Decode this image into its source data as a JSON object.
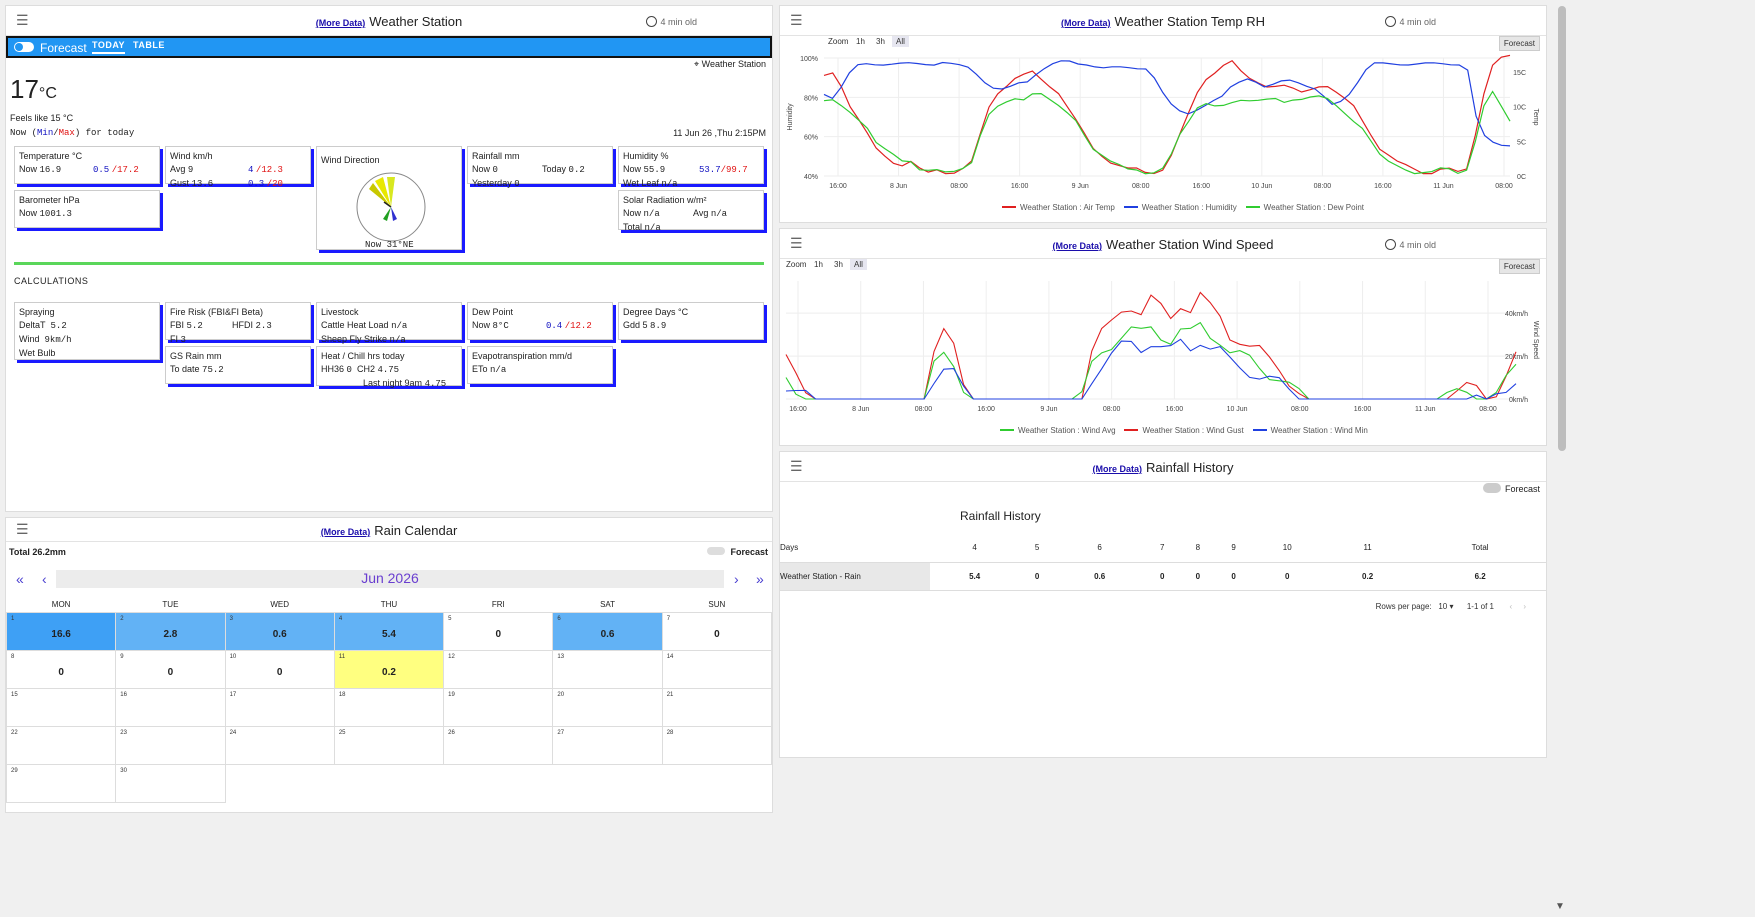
{
  "ws_panel": {
    "more": "(More Data)",
    "title": "Weather Station",
    "age": "4 min old",
    "forecast_label": "Forecast",
    "tab_today": "TODAY",
    "tab_table": "TABLE",
    "location": "Weather Station",
    "temp_value": "17",
    "temp_unit": "°C",
    "feels_like": "Feels like 15 °C",
    "now_prefix": "Now (",
    "min_label": "Min",
    "slash": "/",
    "max_label": "Max",
    "now_suffix": ") for today",
    "datetime": "11 Jun 26 ,Thu 2:15PM",
    "temperature": {
      "title": "Temperature °C",
      "now_label": "Now",
      "now": "16.9",
      "min": "0.5",
      "max": "/17.2"
    },
    "wind": {
      "title": "Wind km/h",
      "avg_label": "Avg",
      "avg": "9",
      "avg_min": "4",
      "avg_max": "/12.3",
      "gust_label": "Gust",
      "gust": "13.6",
      "gust_min": "0.3",
      "gust_max": "/20"
    },
    "wind_direction": {
      "title": "Wind Direction",
      "now": "Now  31°NE"
    },
    "rainfall": {
      "title": "Rainfall mm",
      "now_label": "Now",
      "now": "0",
      "today_label": "Today",
      "today": "0.2",
      "yesterday_label": "Yesterday",
      "yesterday": "0"
    },
    "humidity": {
      "title": "Humidity %",
      "now_label": "Now",
      "now": "55.9",
      "min": "53.7",
      "max": "/99.7",
      "wet_leaf_label": "Wet Leaf",
      "wet_leaf": "n/a"
    },
    "barometer": {
      "title": "Barometer hPa",
      "now_label": "Now",
      "now": "1001.3"
    },
    "solar": {
      "title": "Solar Radiation w/m²",
      "now_label": "Now",
      "now": "n/a",
      "avg_label": "Avg",
      "avg": "n/a",
      "total_label": "Total",
      "total": "n/a"
    },
    "calc_heading": "CALCULATIONS",
    "spraying": {
      "title": "Spraying",
      "delta_label": "DeltaT",
      "delta": "5.2",
      "wind_label": "Wind",
      "wind": "9km/h",
      "wet_bulb_label": "Wet Bulb"
    },
    "fire": {
      "title": "Fire Risk (FBI&FI Beta)",
      "fbi_label": "FBI",
      "fbi": "5.2",
      "hfdi_label": "HFDI",
      "hfdi": "2.3",
      "fi_label": "FI",
      "fi": "3"
    },
    "livestock": {
      "title": "Livestock",
      "cattle_label": "Cattle Heat Load",
      "cattle": "n/a",
      "sheep_label": "Sheep Fly Strike",
      "sheep": "n/a"
    },
    "dew": {
      "title": "Dew Point",
      "now_label": "Now",
      "now": "8°C",
      "min": "0.4",
      "max": "/12.2"
    },
    "degree": {
      "title": "Degree Days °C",
      "gdd_label": "Gdd 5",
      "gdd": "8.9"
    },
    "gsrain": {
      "title": "GS Rain mm",
      "todate_label": "To date",
      "todate": "75.2"
    },
    "heatchill": {
      "title": "Heat / Chill hrs today",
      "hh_label": "HH36",
      "hh": "0",
      "ch_label": "CH2",
      "ch": "4.75",
      "last_label": "Last night 9am",
      "last": "4.75"
    },
    "evapo": {
      "title": "Evapotranspiration mm/d",
      "eto_label": "ETo",
      "eto": "n/a"
    }
  },
  "temp_panel": {
    "more": "(More Data)",
    "title": "Weather Station Temp RH",
    "age": "4 min old",
    "zoom": "Zoom",
    "z1": "1h",
    "z3": "3h",
    "zall": "All",
    "forecast": "Forecast",
    "y_left_label": "Humidity",
    "y_right_label": "Temp",
    "legend": [
      "Weather Station : Air Temp",
      "Weather Station : Humidity",
      "Weather Station : Dew Point"
    ],
    "colors": {
      "temp": "#e02020",
      "hum": "#2040e0",
      "dew": "#30cc30"
    }
  },
  "wind_panel": {
    "more": "(More Data)",
    "title": "Weather Station Wind Speed",
    "age": "4 min old",
    "zoom": "Zoom",
    "z1": "1h",
    "z3": "3h",
    "zall": "All",
    "forecast": "Forecast",
    "y_label": "Wind Speed",
    "legend": [
      "Weather Station : Wind Avg",
      "Weather Station : Wind Gust",
      "Weather Station : Wind Min"
    ]
  },
  "rain_hist": {
    "more": "(More Data)",
    "title": "Rainfall History",
    "forecast": "Forecast",
    "table_title": "Rainfall History",
    "headers": [
      "Days",
      "4",
      "5",
      "6",
      "7",
      "8",
      "9",
      "10",
      "11",
      "Total"
    ],
    "row": [
      "Weather Station - Rain",
      "5.4",
      "0",
      "0.6",
      "0",
      "0",
      "0",
      "0",
      "0.2",
      "6.2"
    ],
    "rows_per_page_label": "Rows per page:",
    "rows_per_page": "10",
    "range": "1-1 of 1"
  },
  "rain_cal": {
    "more": "(More Data)",
    "title": "Rain Calendar",
    "total": "Total 26.2mm",
    "forecast": "Forecast",
    "month": "Jun 2026",
    "days": [
      "MON",
      "TUE",
      "WED",
      "THU",
      "FRI",
      "SAT",
      "SUN"
    ],
    "weeks": [
      [
        {
          "d": "1",
          "v": "16.6"
        },
        {
          "d": "2",
          "v": "2.8"
        },
        {
          "d": "3",
          "v": "0.6"
        },
        {
          "d": "4",
          "v": "5.4"
        },
        {
          "d": "5",
          "v": "0"
        },
        {
          "d": "6",
          "v": "0.6"
        },
        {
          "d": "7",
          "v": "0"
        }
      ],
      [
        {
          "d": "8",
          "v": "0"
        },
        {
          "d": "9",
          "v": "0"
        },
        {
          "d": "10",
          "v": "0"
        },
        {
          "d": "11",
          "v": "0.2"
        },
        {
          "d": "12",
          "v": ""
        },
        {
          "d": "13",
          "v": ""
        },
        {
          "d": "14",
          "v": ""
        }
      ],
      [
        {
          "d": "15",
          "v": ""
        },
        {
          "d": "16",
          "v": ""
        },
        {
          "d": "17",
          "v": ""
        },
        {
          "d": "18",
          "v": ""
        },
        {
          "d": "19",
          "v": ""
        },
        {
          "d": "20",
          "v": ""
        },
        {
          "d": "21",
          "v": ""
        }
      ],
      [
        {
          "d": "22",
          "v": ""
        },
        {
          "d": "23",
          "v": ""
        },
        {
          "d": "24",
          "v": ""
        },
        {
          "d": "25",
          "v": ""
        },
        {
          "d": "26",
          "v": ""
        },
        {
          "d": "27",
          "v": ""
        },
        {
          "d": "28",
          "v": ""
        }
      ],
      [
        {
          "d": "29",
          "v": ""
        },
        {
          "d": "30",
          "v": ""
        }
      ]
    ]
  },
  "chart_data": [
    {
      "type": "line",
      "title": "Weather Station Temp RH",
      "x_ticks": [
        "16:00",
        "8 Jun",
        "08:00",
        "16:00",
        "9 Jun",
        "08:00",
        "16:00",
        "10 Jun",
        "08:00",
        "16:00",
        "11 Jun",
        "08:00"
      ],
      "y_left_ticks": [
        "40%",
        "60%",
        "80%",
        "100%"
      ],
      "y_right_ticks": [
        "0C",
        "5C",
        "10C",
        "15C"
      ],
      "ylim_left": [
        40,
        100
      ],
      "ylim_right": [
        0,
        17
      ],
      "series": [
        {
          "name": "Weather Station : Air Temp",
          "axis": "right",
          "values": [
            14.5,
            15,
            13,
            10,
            8,
            6,
            4,
            3,
            2,
            1.5,
            2,
            1,
            0.5,
            1,
            0.5,
            0.5,
            1,
            2,
            6,
            10,
            12,
            13,
            14,
            14.5,
            15,
            14,
            13,
            12,
            10,
            8,
            6,
            4,
            3,
            2,
            1.5,
            1,
            1,
            0.5,
            0.5,
            1,
            3,
            6,
            9,
            12,
            14,
            15,
            16,
            16.5,
            15,
            14,
            13.5,
            13,
            13,
            13,
            12.5,
            12,
            12.5,
            13,
            13,
            12,
            11,
            10,
            8,
            6,
            4,
            3,
            2,
            1.5,
            1,
            0.5,
            0.5,
            1,
            1,
            0.5,
            1,
            6,
            12,
            16,
            17,
            17.2
          ]
        },
        {
          "name": "Weather Station : Humidity",
          "axis": "left",
          "values": [
            82,
            80,
            85,
            92,
            96,
            97,
            97,
            97,
            97,
            97,
            97,
            97,
            97,
            97,
            98,
            97,
            96,
            95,
            92,
            88,
            85,
            84,
            85,
            87,
            88,
            92,
            95,
            97,
            98,
            98,
            97,
            97,
            96,
            95,
            95,
            95,
            95,
            95,
            95,
            90,
            82,
            76,
            73,
            72,
            74,
            76,
            78,
            80,
            85,
            88,
            90,
            88,
            85,
            86,
            88,
            89,
            88,
            86,
            84,
            80,
            76,
            78,
            82,
            88,
            94,
            97,
            97,
            97,
            97,
            97,
            97,
            97,
            97,
            97,
            97,
            97,
            94,
            70,
            60,
            57,
            56,
            55.9
          ]
        },
        {
          "name": "Weather Station : Dew Point",
          "axis": "right",
          "values": [
            11,
            11,
            10,
            9,
            8,
            7,
            5,
            4,
            3,
            2,
            2,
            1,
            1,
            1,
            0.5,
            0.5,
            1,
            2,
            6,
            9,
            10,
            10.5,
            11,
            11,
            12,
            12,
            11,
            10,
            9,
            8,
            6,
            4,
            3,
            2,
            1.5,
            1,
            1,
            0.5,
            0.5,
            1,
            3,
            6,
            8,
            10,
            10.5,
            10,
            10,
            10.5,
            11,
            11,
            11,
            11,
            11,
            10.5,
            11,
            11.2,
            11.5,
            11.5,
            11,
            10,
            9,
            8,
            7,
            5,
            3,
            2,
            1.5,
            1,
            0.5,
            0.5,
            0.5,
            1,
            1,
            0.5,
            1,
            5,
            10,
            12,
            10,
            8
          ]
        }
      ]
    },
    {
      "type": "line",
      "title": "Weather Station Wind Speed",
      "x_ticks": [
        "16:00",
        "8 Jun",
        "08:00",
        "16:00",
        "9 Jun",
        "08:00",
        "16:00",
        "10 Jun",
        "08:00",
        "16:00",
        "11 Jun",
        "08:00"
      ],
      "y_ticks": [
        "0km/h",
        "20km/h",
        "40km/h"
      ],
      "ylim": [
        0,
        55
      ],
      "series": [
        {
          "name": "Weather Station : Wind Avg",
          "values": [
            10,
            5,
            2,
            0,
            0,
            0,
            0,
            0,
            0,
            0,
            0,
            0,
            0,
            0,
            0,
            15,
            22,
            18,
            5,
            0,
            0,
            0,
            0,
            0,
            0,
            0,
            0,
            0,
            0,
            0,
            1,
            15,
            22,
            26,
            30,
            32,
            30,
            33,
            30,
            28,
            32,
            30,
            34,
            30,
            28,
            22,
            20,
            18,
            15,
            12,
            10,
            6,
            2,
            0,
            0,
            0,
            0,
            0,
            0,
            0,
            0,
            0,
            0,
            0,
            0,
            0,
            0,
            1,
            2,
            3,
            2,
            0,
            2,
            8,
            15
          ]
        },
        {
          "name": "Weather Station : Wind Gust",
          "values": [
            18,
            10,
            4,
            0,
            0,
            0,
            0,
            0,
            0,
            0,
            0,
            0,
            0,
            0,
            0,
            22,
            30,
            24,
            8,
            0,
            0,
            0,
            0,
            0,
            0,
            0,
            0,
            0,
            0,
            0,
            2,
            22,
            30,
            35,
            42,
            44,
            40,
            46,
            42,
            38,
            45,
            42,
            48,
            42,
            38,
            30,
            28,
            24,
            22,
            18,
            15,
            9,
            3,
            0,
            0,
            0,
            0,
            0,
            0,
            0,
            0,
            0,
            0,
            0,
            0,
            0,
            0,
            2,
            4,
            5,
            4,
            0,
            4,
            12,
            20
          ]
        },
        {
          "name": "Weather Station : Wind Min",
          "values": [
            6,
            3,
            1,
            0,
            0,
            0,
            0,
            0,
            0,
            0,
            0,
            0,
            0,
            0,
            0,
            10,
            16,
            13,
            3,
            0,
            0,
            0,
            0,
            0,
            0,
            0,
            0,
            0,
            0,
            0,
            0,
            10,
            16,
            20,
            24,
            26,
            24,
            27,
            24,
            22,
            26,
            24,
            28,
            24,
            22,
            17,
            15,
            13,
            11,
            9,
            7,
            4,
            1,
            0,
            0,
            0,
            0,
            0,
            0,
            0,
            0,
            0,
            0,
            0,
            0,
            0,
            0,
            0,
            1,
            2,
            1,
            0,
            1,
            5,
            10
          ]
        }
      ]
    }
  ]
}
